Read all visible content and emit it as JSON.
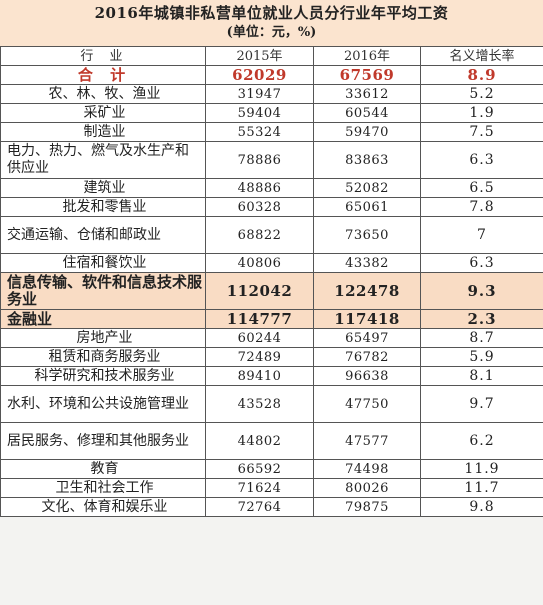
{
  "title": "2016年城镇非私营单位就业人员分行业年平均工资",
  "subtitle": "(单位：元，%)",
  "header": {
    "industry": "行 业",
    "y2015": "2015年",
    "y2016": "2016年",
    "growth": "名义增长率"
  },
  "total": {
    "industry": "合 计",
    "y2015": "62029",
    "y2016": "67569",
    "growth": "8.9"
  },
  "rows": [
    {
      "industry": "农、林、牧、渔业",
      "y2015": "31947",
      "y2016": "33612",
      "growth": "5.2"
    },
    {
      "industry": "采矿业",
      "y2015": "59404",
      "y2016": "60544",
      "growth": "1.9"
    },
    {
      "industry": "制造业",
      "y2015": "55324",
      "y2016": "59470",
      "growth": "7.5"
    },
    {
      "industry": "电力、热力、燃气及水生产和供应业",
      "y2015": "78886",
      "y2016": "83863",
      "growth": "6.3"
    },
    {
      "industry": "建筑业",
      "y2015": "48886",
      "y2016": "52082",
      "growth": "6.5"
    },
    {
      "industry": "批发和零售业",
      "y2015": "60328",
      "y2016": "65061",
      "growth": "7.8"
    },
    {
      "industry": "交通运输、仓储和邮政业",
      "y2015": "68822",
      "y2016": "73650",
      "growth": "7"
    },
    {
      "industry": "住宿和餐饮业",
      "y2015": "40806",
      "y2016": "43382",
      "growth": "6.3"
    },
    {
      "industry": "信息传输、软件和信息技术服务业",
      "y2015": "112042",
      "y2016": "122478",
      "growth": "9.3"
    },
    {
      "industry": "金融业",
      "y2015": "114777",
      "y2016": "117418",
      "growth": "2.3"
    },
    {
      "industry": "房地产业",
      "y2015": "60244",
      "y2016": "65497",
      "growth": "8.7"
    },
    {
      "industry": "租赁和商务服务业",
      "y2015": "72489",
      "y2016": "76782",
      "growth": "5.9"
    },
    {
      "industry": "科学研究和技术服务业",
      "y2015": "89410",
      "y2016": "96638",
      "growth": "8.1"
    },
    {
      "industry": "水利、环境和公共设施管理业",
      "y2015": "43528",
      "y2016": "47750",
      "growth": "9.7"
    },
    {
      "industry": "居民服务、修理和其他服务业",
      "y2015": "44802",
      "y2016": "47577",
      "growth": "6.2"
    },
    {
      "industry": "教育",
      "y2015": "66592",
      "y2016": "74498",
      "growth": "11.9"
    },
    {
      "industry": "卫生和社会工作",
      "y2015": "71624",
      "y2016": "80026",
      "growth": "11.7"
    },
    {
      "industry": "文化、体育和娱乐业",
      "y2015": "72764",
      "y2016": "79875",
      "growth": "9.8"
    }
  ]
}
